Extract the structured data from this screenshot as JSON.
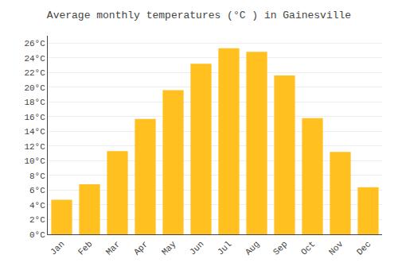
{
  "chart_data": {
    "type": "bar",
    "title": "Average monthly temperatures (°C ) in Gainesville",
    "categories": [
      "Jan",
      "Feb",
      "Mar",
      "Apr",
      "May",
      "Jun",
      "Jul",
      "Aug",
      "Sep",
      "Oct",
      "Nov",
      "Dec"
    ],
    "values": [
      4.7,
      6.8,
      11.3,
      15.7,
      19.6,
      23.2,
      25.3,
      24.8,
      21.6,
      15.8,
      11.2,
      6.4
    ],
    "color": "#FFC020",
    "ylim": [
      0,
      27
    ],
    "yticks": [
      {
        "value": 0,
        "label": "0°C"
      },
      {
        "value": 2,
        "label": "2°C"
      },
      {
        "value": 4,
        "label": "4°C"
      },
      {
        "value": 6,
        "label": "6°C"
      },
      {
        "value": 8,
        "label": "8°C"
      },
      {
        "value": 10,
        "label": "10°C"
      },
      {
        "value": 12,
        "label": "12°C"
      },
      {
        "value": 14,
        "label": "14°C"
      },
      {
        "value": 16,
        "label": "16°C"
      },
      {
        "value": 18,
        "label": "18°C"
      },
      {
        "value": 20,
        "label": "20°C"
      },
      {
        "value": 22,
        "label": "22°C"
      },
      {
        "value": 24,
        "label": "24°C"
      },
      {
        "value": 26,
        "label": "26°C"
      }
    ],
    "grid": true
  }
}
